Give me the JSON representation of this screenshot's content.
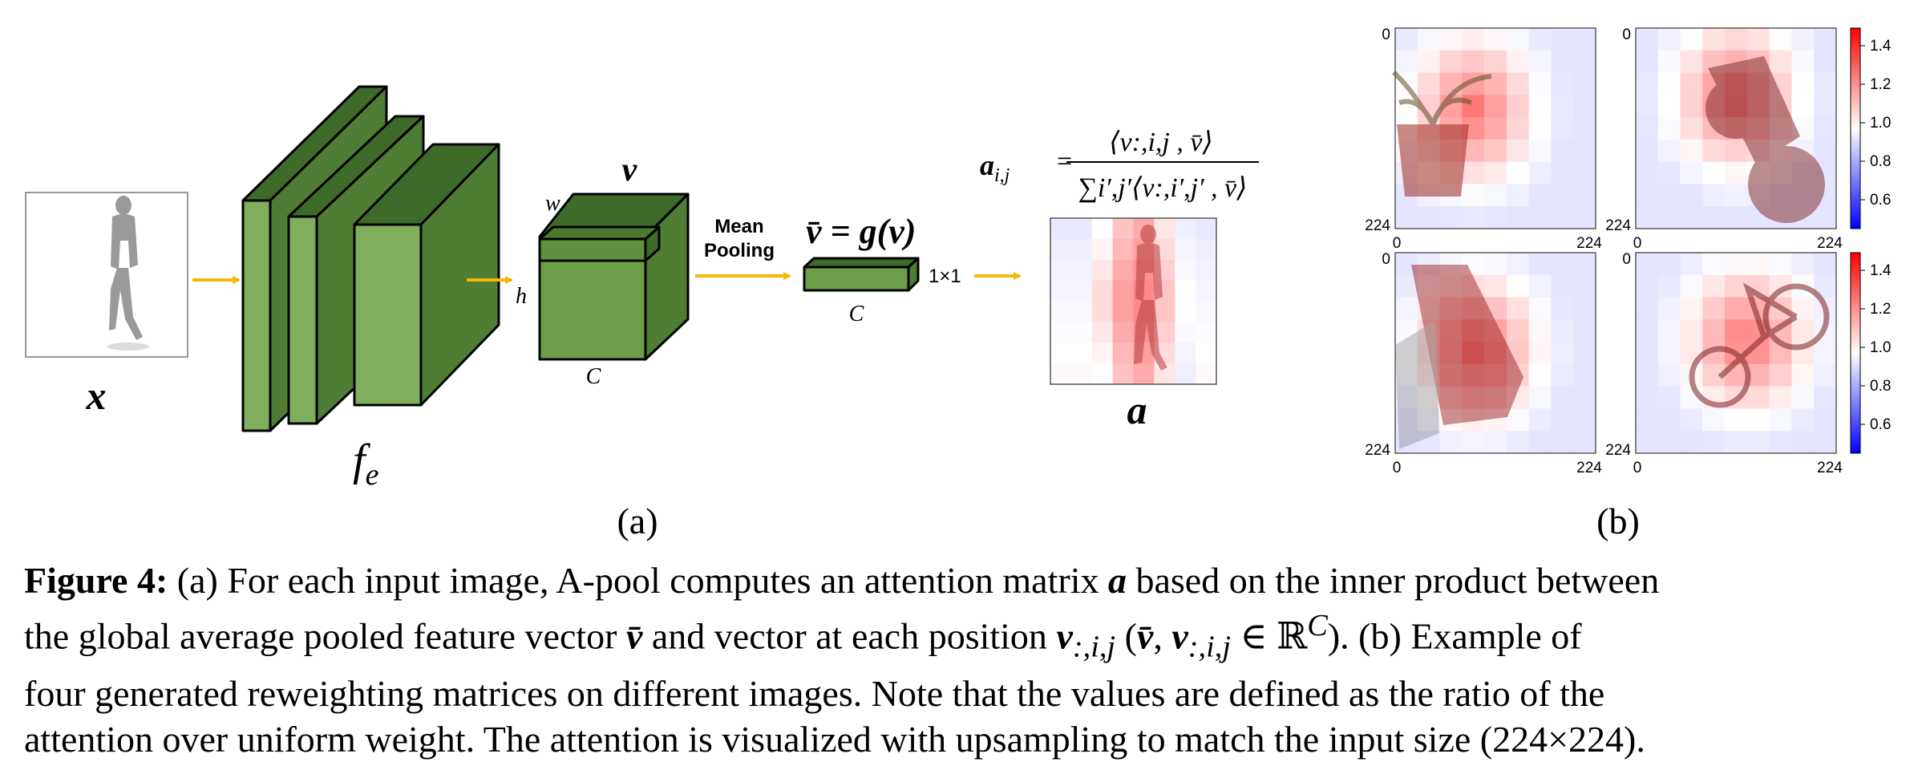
{
  "panel_a": {
    "label": "(a)",
    "input_label": "x",
    "encoder_label": "f",
    "encoder_sub": "e",
    "feature_label": "v",
    "dim_w": "w",
    "dim_h": "h",
    "dim_c": "C",
    "pool_label_line1": "Mean",
    "pool_label_line2": "Pooling",
    "pooled_eq": "v̄ = g(v)",
    "pooled_size": "1×1",
    "pooled_c": "C",
    "attn_eq_lhs": "a",
    "attn_eq_lhs_sub": "i,j",
    "attn_eq_numerator": "⟨v:,i,j , v̄⟩",
    "attn_eq_denominator": "∑i′,j′⟨v:,i′,j′ , v̄⟩",
    "attn_label": "a"
  },
  "panel_b": {
    "label": "(b)",
    "tick_start": "0",
    "tick_end": "224",
    "colorbar_ticks": [
      "1.4",
      "1.2",
      "1.0",
      "0.8",
      "0.6"
    ],
    "colors": {
      "low": "#0000ff",
      "mid": "#ffffff",
      "high": "#ff0000"
    }
  },
  "caption": {
    "label": "Figure 4:",
    "line1_a": "(a) For each input image, A-pool computes an attention matrix",
    "line1_sym": "a",
    "line1_b": "based on the inner product between",
    "line2_a": "the global average pooled feature vector",
    "line2_sym1": "v̄",
    "line2_b": "and vector at each position",
    "line2_sym2": "v",
    "line2_sub2": ":,i,j",
    "line2_c": "(",
    "line2_sym3": "v̄",
    "line2_d": ",",
    "line2_sym4": "v",
    "line2_sub4": ":,i,j",
    "line2_e": "∈ ℝ",
    "line2_sup": "C",
    "line2_f": "). (b) Example of",
    "line3": "four generated reweighting matrices on different images. Note that the values are defined as the ratio of the",
    "line4": "attention over uniform weight. The attention is visualized with upsampling to match the input size (224×224)."
  }
}
